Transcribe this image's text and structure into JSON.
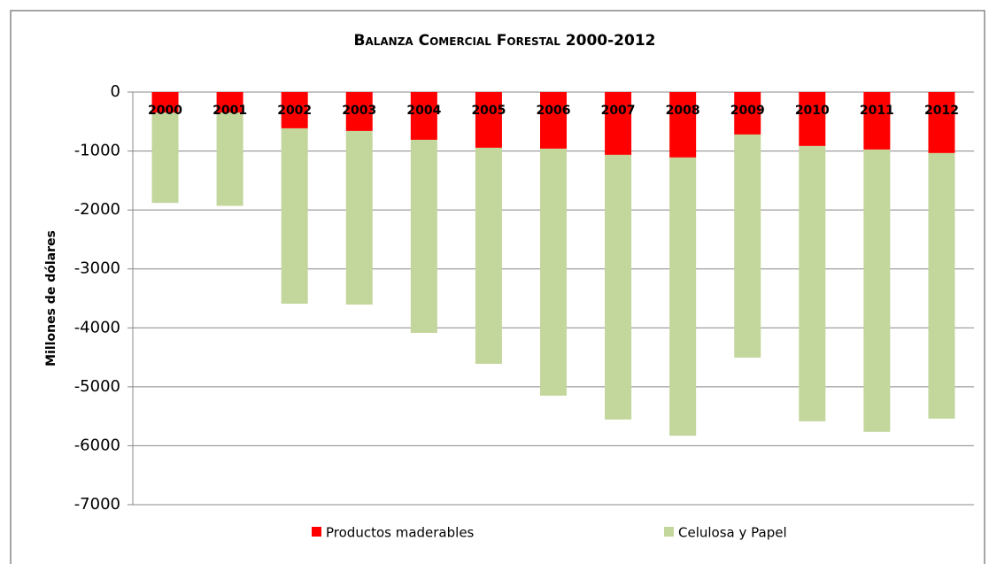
{
  "chart_data": {
    "type": "stacked_bar",
    "title": "Balanza Comercial Forestal 2000-2012",
    "y_label": "Millones de dólares",
    "categories": [
      "2000",
      "2001",
      "2002",
      "2003",
      "2004",
      "2005",
      "2006",
      "2007",
      "2008",
      "2009",
      "2010",
      "2011",
      "2012"
    ],
    "series": [
      {
        "name": "Productos maderables",
        "color": "#ff0000",
        "values": [
          -350,
          -350,
          -615,
          -660,
          -810,
          -945,
          -960,
          -1065,
          -1110,
          -720,
          -915,
          -975,
          -1035
        ]
      },
      {
        "name": "Celulosa y Papel",
        "color": "#c3d69b",
        "values": [
          -1530,
          -1580,
          -2975,
          -2945,
          -3275,
          -3665,
          -4190,
          -4490,
          -4720,
          -3785,
          -4670,
          -4790,
          -4505
        ]
      }
    ],
    "ylim": [
      -7000,
      0
    ],
    "yticks": [
      0,
      -1000,
      -2000,
      -3000,
      -4000,
      -5000,
      -6000,
      -7000
    ],
    "grid": true
  }
}
